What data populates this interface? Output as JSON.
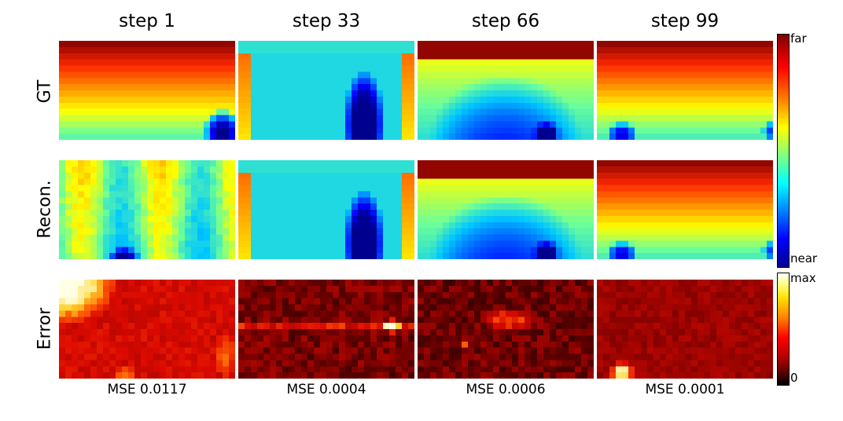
{
  "columns": [
    "step 1",
    "step 33",
    "step 66",
    "step 99"
  ],
  "rows": [
    "GT",
    "Recon.",
    "Error"
  ],
  "mse": [
    "MSE 0.0117",
    "MSE 0.0004",
    "MSE 0.0006",
    "MSE 0.0001"
  ],
  "depth_colorbar": {
    "top_label": "far",
    "bottom_label": "near",
    "colormap": "jet"
  },
  "error_colorbar": {
    "top_label": "max",
    "bottom_label": "0",
    "colormap": "hot"
  }
}
